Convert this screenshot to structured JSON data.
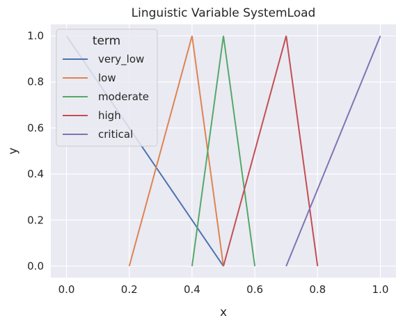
{
  "chart_data": {
    "type": "line",
    "title": "Linguistic Variable SystemLoad",
    "xlabel": "x",
    "ylabel": "y",
    "xlim": [
      -0.05,
      1.05
    ],
    "ylim": [
      -0.05,
      1.05
    ],
    "xticks": [
      0.0,
      0.2,
      0.4,
      0.6,
      0.8,
      1.0
    ],
    "yticks": [
      0.0,
      0.2,
      0.4,
      0.6,
      0.8,
      1.0
    ],
    "xtick_labels": [
      "0.0",
      "0.2",
      "0.4",
      "0.6",
      "0.8",
      "1.0"
    ],
    "ytick_labels": [
      "0.0",
      "0.2",
      "0.4",
      "0.6",
      "0.8",
      "1.0"
    ],
    "grid": true,
    "legend": {
      "title": "term",
      "position": "upper-left"
    },
    "colors": {
      "plot_background": "#eaeaf2",
      "grid": "#ffffff"
    },
    "series": [
      {
        "name": "very_low",
        "color": "#4c72b0",
        "x": [
          0.0,
          0.5
        ],
        "y": [
          1.0,
          0.0
        ]
      },
      {
        "name": "low",
        "color": "#dd8452",
        "x": [
          0.2,
          0.4,
          0.5
        ],
        "y": [
          0.0,
          1.0,
          0.0
        ]
      },
      {
        "name": "moderate",
        "color": "#55a868",
        "x": [
          0.4,
          0.5,
          0.6
        ],
        "y": [
          0.0,
          1.0,
          0.0
        ]
      },
      {
        "name": "high",
        "color": "#c44e52",
        "x": [
          0.5,
          0.7,
          0.8
        ],
        "y": [
          0.0,
          1.0,
          0.0
        ]
      },
      {
        "name": "critical",
        "color": "#8172b3",
        "x": [
          0.7,
          1.0
        ],
        "y": [
          0.0,
          1.0
        ]
      }
    ]
  }
}
